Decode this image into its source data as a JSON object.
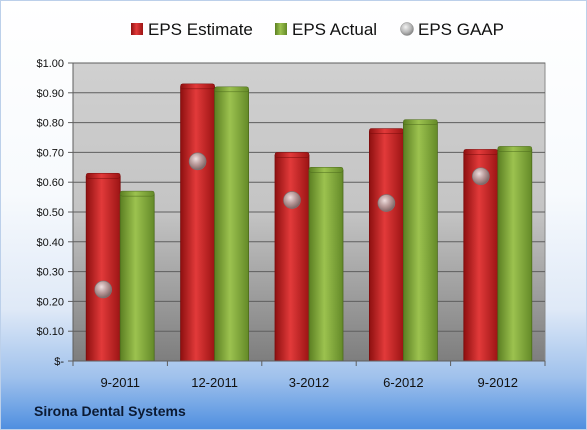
{
  "company": "Sirona Dental Systems",
  "colors": {
    "estimate": "#d42020",
    "actual": "#8db33e",
    "gaap": "#a9a9a9"
  },
  "chart_data": {
    "type": "bar",
    "title": "",
    "xlabel": "",
    "ylabel": "",
    "categories": [
      "9-2011",
      "12-2011",
      "3-2012",
      "6-2012",
      "9-2012"
    ],
    "series": [
      {
        "name": "EPS Estimate",
        "kind": "bar",
        "values": [
          0.62,
          0.92,
          0.69,
          0.77,
          0.7
        ]
      },
      {
        "name": "EPS Actual",
        "kind": "bar",
        "values": [
          0.56,
          0.91,
          0.64,
          0.8,
          0.71
        ]
      },
      {
        "name": "EPS GAAP",
        "kind": "scatter",
        "values": [
          0.24,
          0.67,
          0.54,
          0.53,
          0.62
        ]
      }
    ],
    "ylim": [
      0,
      1.0
    ],
    "yticks": [
      0,
      0.1,
      0.2,
      0.3,
      0.4,
      0.5,
      0.6,
      0.7,
      0.8,
      0.9,
      1.0
    ],
    "ytick_labels": [
      "$-",
      "$0.10",
      "$0.20",
      "$0.30",
      "$0.40",
      "$0.50",
      "$0.60",
      "$0.70",
      "$0.80",
      "$0.90",
      "$1.00"
    ],
    "grid": true,
    "legend": "top"
  }
}
